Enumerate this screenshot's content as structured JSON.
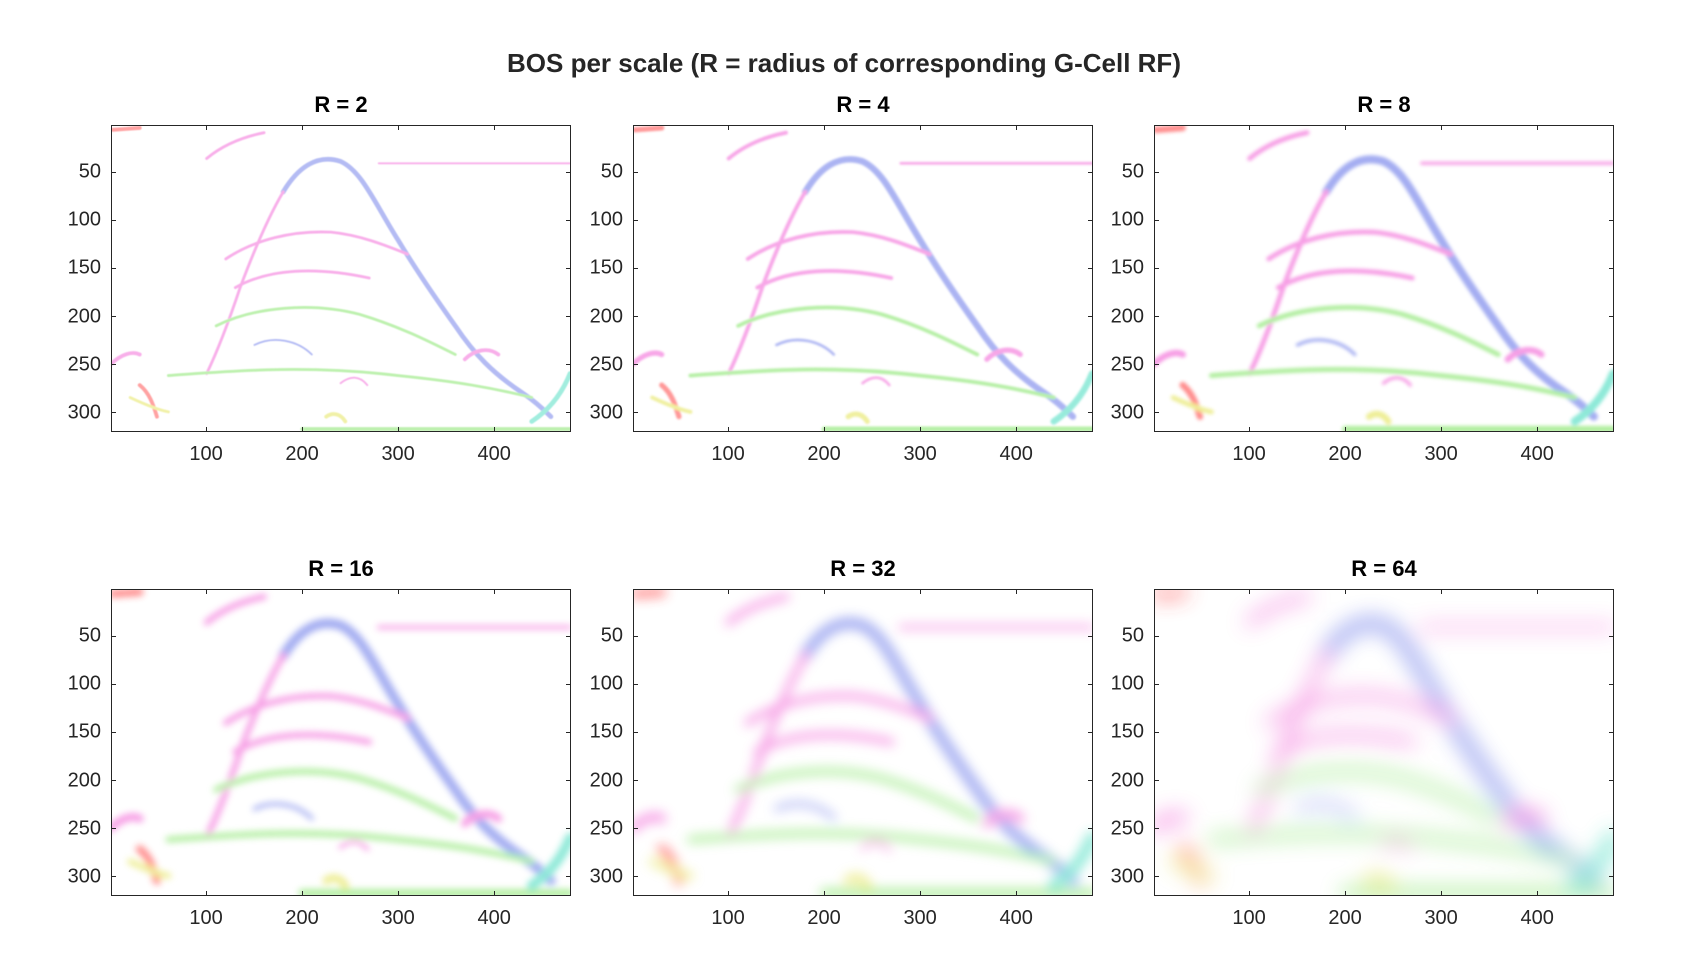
{
  "figure": {
    "title": "BOS per scale (R = radius of corresponding G-Cell RF)"
  },
  "chart_data": [
    {
      "type": "heatmap",
      "title": "R = 2",
      "xlabel": "",
      "ylabel": "",
      "xlim": [
        1,
        480
      ],
      "ylim": [
        320,
        1
      ],
      "xticks": [
        "100",
        "200",
        "300",
        "400"
      ],
      "yticks": [
        "50",
        "100",
        "150",
        "200",
        "250",
        "300"
      ],
      "blur": 0.6,
      "opacity": 0.45
    },
    {
      "type": "heatmap",
      "title": "R = 4",
      "xlabel": "",
      "ylabel": "",
      "xlim": [
        1,
        480
      ],
      "ylim": [
        320,
        1
      ],
      "xticks": [
        "100",
        "200",
        "300",
        "400"
      ],
      "yticks": [
        "50",
        "100",
        "150",
        "200",
        "250",
        "300"
      ],
      "blur": 1.2,
      "opacity": 0.5
    },
    {
      "type": "heatmap",
      "title": "R = 8",
      "xlabel": "",
      "ylabel": "",
      "xlim": [
        1,
        480
      ],
      "ylim": [
        320,
        1
      ],
      "xticks": [
        "100",
        "200",
        "300",
        "400"
      ],
      "yticks": [
        "50",
        "100",
        "150",
        "200",
        "250",
        "300"
      ],
      "blur": 2,
      "opacity": 0.55
    },
    {
      "type": "heatmap",
      "title": "R = 16",
      "xlabel": "",
      "ylabel": "",
      "xlim": [
        1,
        480
      ],
      "ylim": [
        320,
        1
      ],
      "xticks": [
        "100",
        "200",
        "300",
        "400"
      ],
      "yticks": [
        "50",
        "100",
        "150",
        "200",
        "250",
        "300"
      ],
      "blur": 3.5,
      "opacity": 0.55
    },
    {
      "type": "heatmap",
      "title": "R = 32",
      "xlabel": "",
      "ylabel": "",
      "xlim": [
        1,
        480
      ],
      "ylim": [
        320,
        1
      ],
      "xticks": [
        "100",
        "200",
        "300",
        "400"
      ],
      "yticks": [
        "50",
        "100",
        "150",
        "200",
        "250",
        "300"
      ],
      "blur": 6,
      "opacity": 0.55
    },
    {
      "type": "heatmap",
      "title": "R = 64",
      "xlabel": "",
      "ylabel": "",
      "xlim": [
        1,
        480
      ],
      "ylim": [
        320,
        1
      ],
      "xticks": [
        "100",
        "200",
        "300",
        "400"
      ],
      "yticks": [
        "50",
        "100",
        "150",
        "200",
        "250",
        "300"
      ],
      "blur": 11,
      "opacity": 0.6
    }
  ],
  "colors": {
    "axis": "#262626",
    "blue": "#5a6be6",
    "magenta": "#f050d0",
    "green": "#70e050",
    "red": "#ff3030",
    "cyan": "#30d8b8",
    "yellow": "#e0e040"
  }
}
